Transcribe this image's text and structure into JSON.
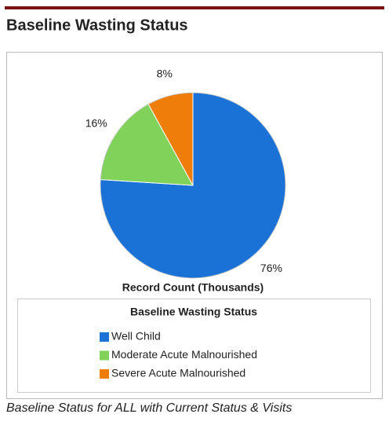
{
  "header": {
    "title": "Baseline Wasting Status"
  },
  "chart_data": {
    "type": "pie",
    "categories": [
      "Well Child",
      "Moderate Acute Malnourished",
      "Severe Acute Malnourished"
    ],
    "values": [
      76,
      16,
      8
    ],
    "value_labels": [
      "76%",
      "16%",
      "8%"
    ],
    "colors": [
      "#1a72d6",
      "#80d25a",
      "#ee7d0a"
    ],
    "axis_label": "Record Count (Thousands)",
    "legend_title": "Baseline Wasting Status"
  },
  "caption": "Baseline Status for ALL with Current Status & Visits"
}
